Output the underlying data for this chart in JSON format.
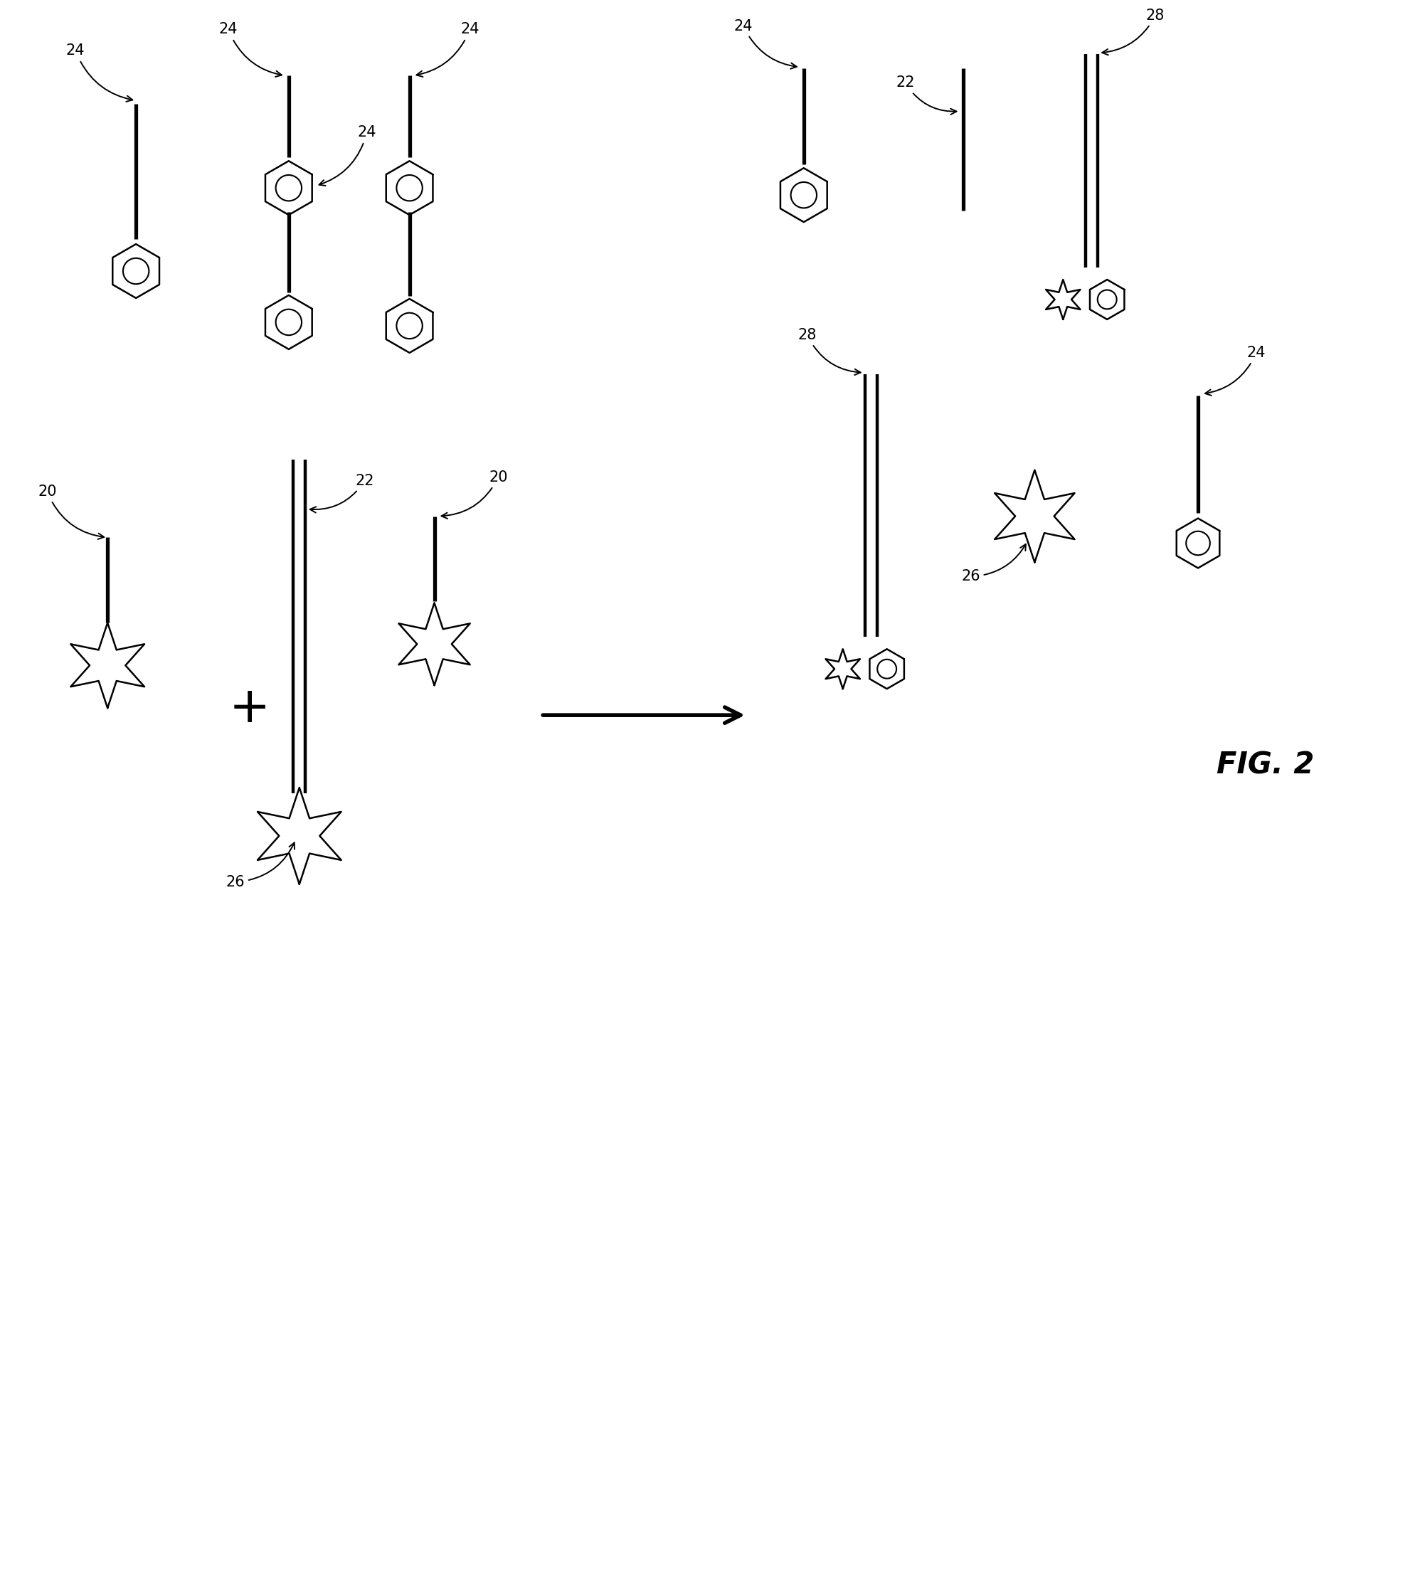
{
  "fig_label": "FIG. 2",
  "bg": "#ffffff",
  "fg": "#000000",
  "lw_strand": 3.8,
  "lw_double": 3.2,
  "lw_shape": 1.8,
  "hex_size": 0.38,
  "star_size_large": 0.6,
  "star_size_small": 0.3,
  "label_fontsize": 15,
  "figsize": [
    19.89,
    22.25
  ]
}
